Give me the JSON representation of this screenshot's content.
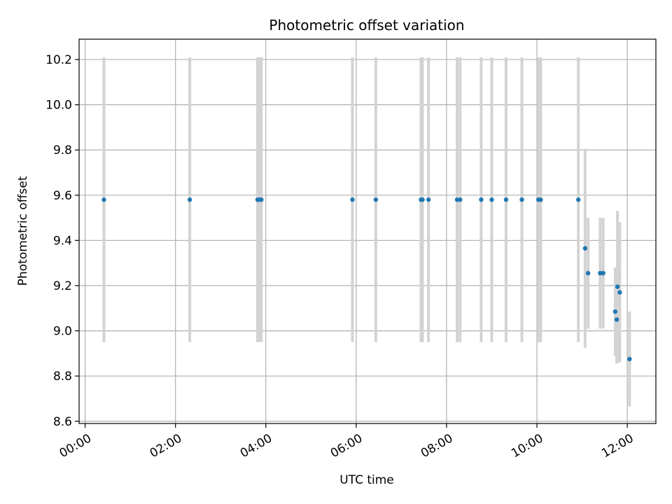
{
  "chart_data": {
    "type": "scatter",
    "title": "Photometric offset variation",
    "xlabel": "UTC time",
    "ylabel": "Photometric offset",
    "xlim": [
      "-00:08",
      "12:38"
    ],
    "ylim": [
      8.59,
      10.29
    ],
    "x_ticks": [
      "00:00",
      "02:00",
      "04:00",
      "06:00",
      "08:00",
      "10:00",
      "12:00"
    ],
    "y_ticks": [
      "8.6",
      "8.8",
      "9.0",
      "9.2",
      "9.4",
      "9.6",
      "9.8",
      "10.0",
      "10.2"
    ],
    "grid": true,
    "marker_color": "#1f77b4",
    "errorbar_color": "#d3d3d3",
    "points": [
      {
        "time": "00:25",
        "y": 9.58,
        "err": 0.63
      },
      {
        "time": "02:19",
        "y": 9.58,
        "err": 0.63
      },
      {
        "time": "03:49",
        "y": 9.58,
        "err": 0.63
      },
      {
        "time": "03:51",
        "y": 9.58,
        "err": 0.63
      },
      {
        "time": "03:54",
        "y": 9.58,
        "err": 0.63
      },
      {
        "time": "05:55",
        "y": 9.58,
        "err": 0.63
      },
      {
        "time": "06:26",
        "y": 9.58,
        "err": 0.63
      },
      {
        "time": "07:26",
        "y": 9.58,
        "err": 0.63
      },
      {
        "time": "07:28",
        "y": 9.58,
        "err": 0.63
      },
      {
        "time": "07:36",
        "y": 9.58,
        "err": 0.63
      },
      {
        "time": "08:14",
        "y": 9.58,
        "err": 0.63
      },
      {
        "time": "08:18",
        "y": 9.58,
        "err": 0.63
      },
      {
        "time": "08:46",
        "y": 9.58,
        "err": 0.63
      },
      {
        "time": "09:00",
        "y": 9.58,
        "err": 0.63
      },
      {
        "time": "09:19",
        "y": 9.58,
        "err": 0.63
      },
      {
        "time": "09:40",
        "y": 9.58,
        "err": 0.63
      },
      {
        "time": "10:02",
        "y": 9.58,
        "err": 0.63
      },
      {
        "time": "10:05",
        "y": 9.58,
        "err": 0.63
      },
      {
        "time": "10:55",
        "y": 9.58,
        "err": 0.63
      },
      {
        "time": "11:04",
        "y": 9.365,
        "err": 0.44
      },
      {
        "time": "11:08",
        "y": 9.255,
        "err": 0.245
      },
      {
        "time": "11:24",
        "y": 9.255,
        "err": 0.245
      },
      {
        "time": "11:28",
        "y": 9.255,
        "err": 0.245
      },
      {
        "time": "11:44",
        "y": 9.085,
        "err": 0.195
      },
      {
        "time": "11:46",
        "y": 9.05,
        "err": 0.195
      },
      {
        "time": "11:47",
        "y": 9.195,
        "err": 0.335
      },
      {
        "time": "11:50",
        "y": 9.17,
        "err": 0.31
      },
      {
        "time": "12:03",
        "y": 8.875,
        "err": 0.21
      }
    ]
  }
}
